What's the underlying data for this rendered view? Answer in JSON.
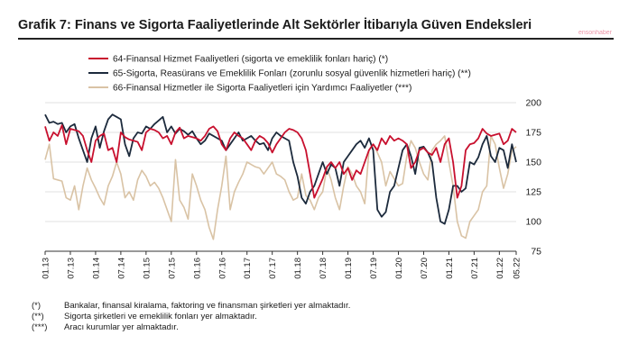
{
  "title": "Grafik 7:  Finans ve Sigorta Faaliyetlerinde Alt Sektörler İtibarıyla Güven Endeksleri",
  "watermark": "ensonhaber",
  "footnotes": [
    {
      "mark": "(*)",
      "text": "Bankalar, finansal kiralama, faktoring ve finansman şirketleri yer almaktadır."
    },
    {
      "mark": "(**)",
      "text": "Sigorta şirketleri ve emeklilik fonları yer almaktadır."
    },
    {
      "mark": "(***)",
      "text": "Aracı kurumlar yer almaktadır."
    }
  ],
  "chart_data": {
    "type": "line",
    "title": "Finans ve Sigorta Faaliyetlerinde Alt Sektörler İtibarıyla Güven Endeksleri",
    "xlabel": "",
    "ylabel": "",
    "ylim": [
      75,
      200
    ],
    "yticks": [
      75,
      100,
      125,
      150,
      175,
      200
    ],
    "x_start": "01.13",
    "n_points": 113,
    "xtick_labels": [
      "01.13",
      "07.13",
      "01.14",
      "07.14",
      "01.15",
      "07.15",
      "01.16",
      "07.16",
      "01.17",
      "07.17",
      "01.18",
      "07.18",
      "01.19",
      "07.19",
      "01.20",
      "07.20",
      "01.21",
      "07.21",
      "01.22",
      "05.22"
    ],
    "xtick_index": [
      0,
      6,
      12,
      18,
      24,
      30,
      36,
      42,
      48,
      54,
      60,
      66,
      72,
      78,
      84,
      90,
      96,
      102,
      108,
      112
    ],
    "series": [
      {
        "name": "64-Finansal Hizmet Faaliyetleri (sigorta ve emeklilik fonları hariç) (*)",
        "color": "#c8102e",
        "values": [
          180,
          168,
          175,
          172,
          181,
          165,
          178,
          177,
          176,
          172,
          160,
          150,
          168,
          172,
          174,
          160,
          162,
          150,
          175,
          171,
          169,
          168,
          167,
          160,
          175,
          178,
          177,
          175,
          170,
          172,
          165,
          175,
          179,
          170,
          172,
          171,
          170,
          168,
          172,
          178,
          180,
          176,
          165,
          160,
          170,
          175,
          172,
          170,
          165,
          160,
          168,
          172,
          170,
          166,
          158,
          165,
          170,
          175,
          178,
          177,
          175,
          170,
          160,
          140,
          120,
          128,
          136,
          146,
          150,
          145,
          150,
          140,
          145,
          135,
          143,
          140,
          150,
          160,
          165,
          160,
          170,
          165,
          172,
          168,
          170,
          168,
          165,
          145,
          150,
          160,
          162,
          158,
          156,
          162,
          150,
          165,
          170,
          150,
          120,
          130,
          160,
          165,
          166,
          170,
          178,
          174,
          172,
          173,
          174,
          165,
          168,
          178,
          175
        ]
      },
      {
        "name": "65-Sigorta, Reasürans ve Emeklilik Fonları (zorunlu sosyal güvenlik hizmetleri hariç) (**)",
        "color": "#1c2a3c",
        "values": [
          190,
          183,
          184,
          182,
          183,
          175,
          180,
          182,
          170,
          160,
          150,
          170,
          180,
          162,
          176,
          186,
          190,
          188,
          186,
          165,
          155,
          170,
          175,
          174,
          180,
          178,
          182,
          185,
          188,
          175,
          180,
          174,
          178,
          176,
          173,
          176,
          170,
          165,
          168,
          174,
          172,
          170,
          168,
          160,
          165,
          170,
          175,
          168,
          170,
          172,
          168,
          165,
          166,
          160,
          170,
          175,
          172,
          170,
          168,
          150,
          138,
          120,
          115,
          125,
          130,
          140,
          150,
          140,
          148,
          145,
          130,
          150,
          155,
          160,
          165,
          168,
          162,
          170,
          160,
          110,
          104,
          108,
          125,
          130,
          145,
          160,
          165,
          155,
          140,
          162,
          163,
          158,
          150,
          120,
          100,
          98,
          110,
          130,
          130,
          125,
          128,
          150,
          148,
          154,
          165,
          172,
          155,
          150,
          162,
          160,
          145,
          165,
          150
        ]
      },
      {
        "name": "66-Finansal Hizmetler ile Sigorta Faaliyetleri için Yardımcı Faaliyetler (***)",
        "color": "#d9c3a5",
        "values": [
          152,
          165,
          136,
          135,
          134,
          120,
          118,
          130,
          110,
          130,
          145,
          135,
          128,
          120,
          114,
          130,
          138,
          150,
          140,
          120,
          125,
          118,
          135,
          143,
          138,
          130,
          133,
          128,
          120,
          110,
          100,
          152,
          118,
          112,
          102,
          140,
          130,
          118,
          110,
          95,
          85,
          110,
          130,
          155,
          110,
          125,
          133,
          140,
          150,
          148,
          146,
          145,
          140,
          145,
          150,
          140,
          138,
          135,
          125,
          118,
          120,
          140,
          122,
          118,
          110,
          120,
          125,
          145,
          135,
          120,
          110,
          130,
          146,
          140,
          130,
          125,
          115,
          160,
          165,
          158,
          150,
          130,
          142,
          136,
          130,
          132,
          155,
          168,
          162,
          150,
          140,
          135,
          160,
          165,
          168,
          172,
          150,
          130,
          100,
          88,
          86,
          100,
          105,
          110,
          125,
          130,
          172,
          165,
          145,
          128,
          140,
          160,
          163
        ]
      }
    ]
  }
}
